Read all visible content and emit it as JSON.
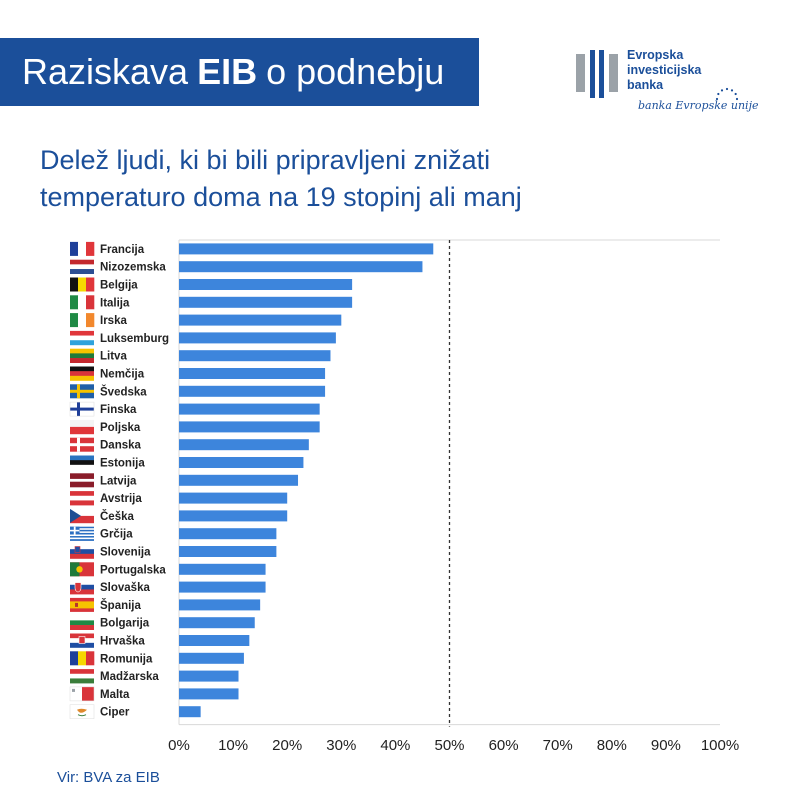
{
  "header": {
    "title_prefix": "Raziskava",
    "title_bold": "EIB",
    "title_suffix": "o podnebju"
  },
  "logo": {
    "line1": "Evropska",
    "line2": "investicijska",
    "line3": "banka",
    "tagline": "banka Evropske unije"
  },
  "subtitle_line1": "Delež ljudi, ki bi bili pripravljeni znižati",
  "subtitle_line2": "temperaturo doma na 19 stopinj ali manj",
  "source": "Vir: BVA za EIB",
  "colors": {
    "brand": "#1b4f9a",
    "bar": "#3d85dc",
    "reference_line": "#333333"
  },
  "chart_data": {
    "type": "bar",
    "orientation": "horizontal",
    "categories": [
      "Francija",
      "Nizozemska",
      "Belgija",
      "Italija",
      "Irska",
      "Luksemburg",
      "Litva",
      "Nemčija",
      "Švedska",
      "Finska",
      "Poljska",
      "Danska",
      "Estonija",
      "Latvija",
      "Avstrija",
      "Češka",
      "Grčija",
      "Slovenija",
      "Portugalska",
      "Slovaška",
      "Španija",
      "Bolgarija",
      "Hrvaška",
      "Romunija",
      "Madžarska",
      "Malta",
      "Ciper"
    ],
    "values": [
      47,
      45,
      32,
      32,
      30,
      29,
      28,
      27,
      27,
      26,
      26,
      24,
      23,
      22,
      20,
      20,
      18,
      18,
      16,
      16,
      15,
      14,
      13,
      12,
      11,
      11,
      4
    ],
    "flags": [
      "fr",
      "nl",
      "be",
      "it",
      "ie",
      "lu",
      "lt",
      "de",
      "se",
      "fi",
      "pl",
      "dk",
      "ee",
      "lv",
      "at",
      "cz",
      "gr",
      "si",
      "pt",
      "sk",
      "es",
      "bg",
      "hr",
      "ro",
      "hu",
      "mt",
      "cy"
    ],
    "x_ticks": [
      "0%",
      "10%",
      "20%",
      "30%",
      "40%",
      "50%",
      "60%",
      "70%",
      "80%",
      "90%",
      "100%"
    ],
    "xlim": [
      0,
      100
    ],
    "reference_line": 50,
    "grid": false
  }
}
